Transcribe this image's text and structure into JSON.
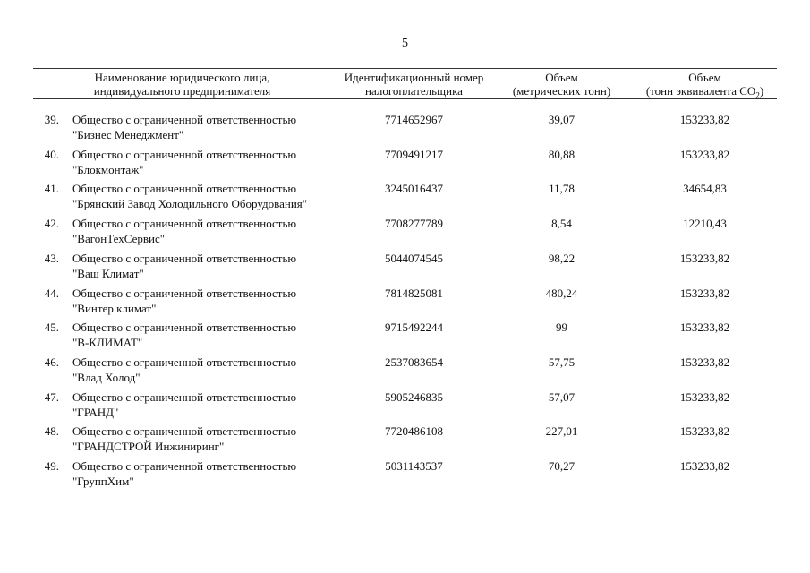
{
  "page_number": "5",
  "header": {
    "name_line1": "Наименование юридического лица,",
    "name_line2": "индивидуального предпринимателя",
    "inn_line1": "Идентификационный номер",
    "inn_line2": "налогоплательщика",
    "volume_line1": "Объем",
    "volume_line2": "(метрических тонн)",
    "co2_line1": "Объем",
    "co2_line2_prefix": "(тонн эквивалента CO",
    "co2_line2_sub": "2",
    "co2_line2_suffix": ")"
  },
  "rows": [
    {
      "num": "39.",
      "name1": "Общество с ограниченной ответственностью",
      "name2": "\"Бизнес Менеджмент\"",
      "inn": "7714652967",
      "volume": "39,07",
      "co2": "153233,82"
    },
    {
      "num": "40.",
      "name1": "Общество с ограниченной ответственностью",
      "name2": "\"Блокмонтаж\"",
      "inn": "7709491217",
      "volume": "80,88",
      "co2": "153233,82"
    },
    {
      "num": "41.",
      "name1": "Общество с ограниченной ответственностью",
      "name2": "\"Брянский Завод Холодильного Оборудования\"",
      "inn": "3245016437",
      "volume": "11,78",
      "co2": "34654,83"
    },
    {
      "num": "42.",
      "name1": "Общество с ограниченной ответственностью",
      "name2": "\"ВагонТехСервис\"",
      "inn": "7708277789",
      "volume": "8,54",
      "co2": "12210,43"
    },
    {
      "num": "43.",
      "name1": "Общество с ограниченной ответственностью",
      "name2": "\"Ваш Климат\"",
      "inn": "5044074545",
      "volume": "98,22",
      "co2": "153233,82"
    },
    {
      "num": "44.",
      "name1": "Общество с ограниченной ответственностью",
      "name2": "\"Винтер климат\"",
      "inn": "7814825081",
      "volume": "480,24",
      "co2": "153233,82"
    },
    {
      "num": "45.",
      "name1": "Общество с ограниченной ответственностью",
      "name2": "\"В-КЛИМАТ\"",
      "inn": "9715492244",
      "volume": "99",
      "co2": "153233,82"
    },
    {
      "num": "46.",
      "name1": "Общество с ограниченной ответственностью",
      "name2": "\"Влад Холод\"",
      "inn": "2537083654",
      "volume": "57,75",
      "co2": "153233,82"
    },
    {
      "num": "47.",
      "name1": "Общество с ограниченной ответственностью",
      "name2": "\"ГРАНД\"",
      "inn": "5905246835",
      "volume": "57,07",
      "co2": "153233,82"
    },
    {
      "num": "48.",
      "name1": "Общество с ограниченной ответственностью",
      "name2": "\"ГРАНДСТРОЙ Инжиниринг\"",
      "inn": "7720486108",
      "volume": "227,01",
      "co2": "153233,82"
    },
    {
      "num": "49.",
      "name1": "Общество с ограниченной ответственностью",
      "name2": "\"ГруппХим\"",
      "inn": "5031143537",
      "volume": "70,27",
      "co2": "153233,82"
    }
  ]
}
